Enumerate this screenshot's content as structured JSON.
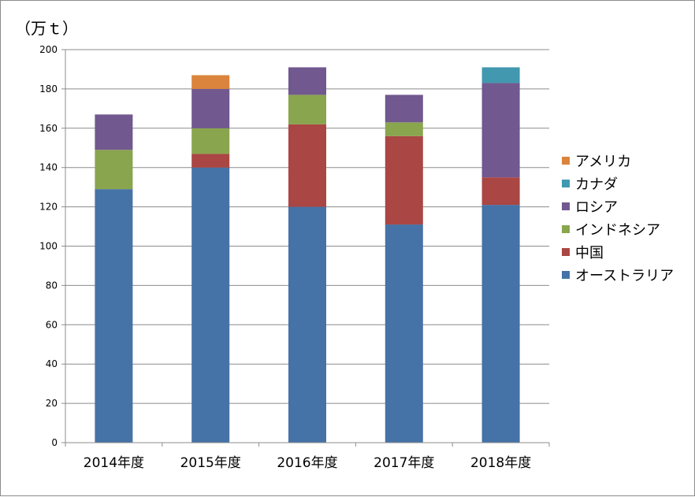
{
  "chart_data": {
    "type": "bar",
    "stacked": true,
    "ylabel": "（万ｔ）",
    "ylim": [
      0,
      200
    ],
    "ytick_step": 20,
    "grid": true,
    "legend_position": "right",
    "categories": [
      "2014年度",
      "2015年度",
      "2016年度",
      "2017年度",
      "2018年度"
    ],
    "series": [
      {
        "name": "オーストラリア",
        "color": "#4572a7",
        "values": [
          129,
          140,
          120,
          111,
          121
        ]
      },
      {
        "name": "中国",
        "color": "#aa4643",
        "values": [
          0,
          7,
          42,
          45,
          14
        ]
      },
      {
        "name": "インドネシア",
        "color": "#89a54e",
        "values": [
          20,
          13,
          15,
          7,
          0
        ]
      },
      {
        "name": "ロシア",
        "color": "#71588f",
        "values": [
          18,
          20,
          14,
          14,
          48
        ]
      },
      {
        "name": "カナダ",
        "color": "#4198af",
        "values": [
          0,
          0,
          0,
          0,
          8
        ]
      },
      {
        "name": "アメリカ",
        "color": "#db843d",
        "values": [
          0,
          7,
          0,
          0,
          0
        ]
      }
    ]
  }
}
